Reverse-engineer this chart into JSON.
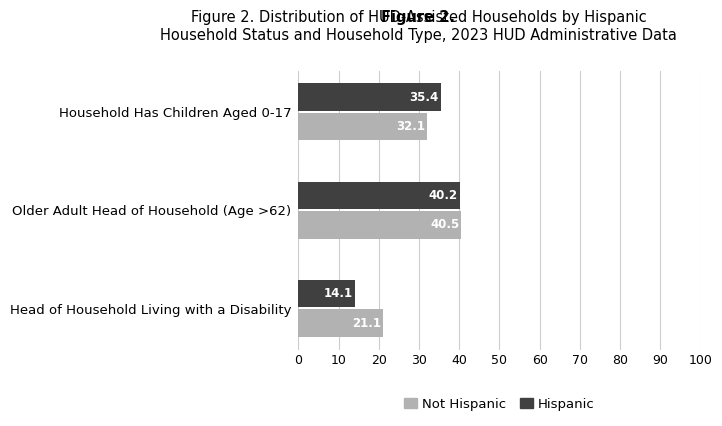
{
  "title_bold": "Figure 2.",
  "title_rest": " Distribution of HUD-Assisted Households by Hispanic\nHousehold Status and Household Type, 2023 HUD Administrative Data",
  "categories": [
    "Household Has Children Aged 0-17",
    "Older Adult Head of Household (Age >62)",
    "Head of Household Living with a Disability"
  ],
  "not_hispanic": [
    32.1,
    40.5,
    21.1
  ],
  "hispanic": [
    35.4,
    40.2,
    14.1
  ],
  "not_hispanic_color": "#b2b2b2",
  "hispanic_color": "#404040",
  "bar_height": 0.28,
  "bar_gap": 0.02,
  "xlim": [
    0,
    100
  ],
  "xticks": [
    0,
    10,
    20,
    30,
    40,
    50,
    60,
    70,
    80,
    90,
    100
  ],
  "legend_labels": [
    "Not Hispanic",
    "Hispanic"
  ],
  "background_color": "#ffffff",
  "figure_background": "#ffffff",
  "label_fontsize": 9.5,
  "tick_fontsize": 9,
  "value_fontsize": 8.5,
  "title_fontsize": 10.5,
  "grid_color": "#cccccc"
}
